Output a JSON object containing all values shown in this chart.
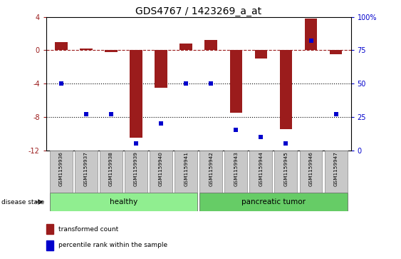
{
  "title": "GDS4767 / 1423269_a_at",
  "samples": [
    "GSM1159936",
    "GSM1159937",
    "GSM1159938",
    "GSM1159939",
    "GSM1159940",
    "GSM1159941",
    "GSM1159942",
    "GSM1159943",
    "GSM1159944",
    "GSM1159945",
    "GSM1159946",
    "GSM1159947"
  ],
  "bar_values": [
    1.0,
    0.2,
    -0.2,
    -10.5,
    -4.5,
    0.8,
    1.2,
    -7.5,
    -1.0,
    -9.5,
    3.8,
    -0.5
  ],
  "percentile_values": [
    50,
    27,
    27,
    5,
    20,
    50,
    50,
    15,
    10,
    5,
    82,
    27
  ],
  "bar_color": "#9B1C1C",
  "dot_color": "#0000CC",
  "ylim_left": [
    -12,
    4
  ],
  "ylim_right": [
    0,
    100
  ],
  "yticks_left": [
    4,
    0,
    -4,
    -8,
    -12
  ],
  "yticks_right": [
    100,
    75,
    50,
    25,
    0
  ],
  "hline_y": 0,
  "dotted_lines": [
    -4,
    -8
  ],
  "healthy_count": 6,
  "tumor_count": 6,
  "healthy_label": "healthy",
  "tumor_label": "pancreatic tumor",
  "disease_state_label": "disease state",
  "legend_bar_label": "transformed count",
  "legend_dot_label": "percentile rank within the sample",
  "healthy_color": "#90EE90",
  "tumor_color": "#66CC66",
  "bar_width": 0.5,
  "label_area_color": "#C8C8C8",
  "title_fontsize": 10,
  "tick_fontsize": 7,
  "annot_fontsize": 7
}
